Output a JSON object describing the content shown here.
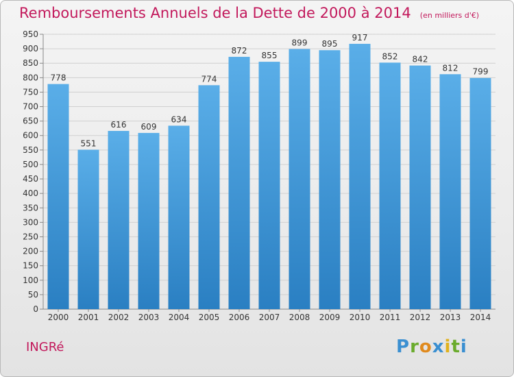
{
  "header": {
    "title": "Remboursements Annuels de la Dette de 2000 à 2014",
    "unit": "(en milliers d'€)"
  },
  "footer": {
    "city": "INGRé",
    "logo": "Proxiti",
    "logo_letters": [
      {
        "ch": "P",
        "color": "#3a8fd1"
      },
      {
        "ch": "r",
        "color": "#6aab2c"
      },
      {
        "ch": "o",
        "color": "#e08a1e"
      },
      {
        "ch": "x",
        "color": "#3a8fd1"
      },
      {
        "ch": "i",
        "color": "#e0b21e"
      },
      {
        "ch": "t",
        "color": "#6aab2c"
      },
      {
        "ch": "i",
        "color": "#3a8fd1"
      }
    ]
  },
  "colors": {
    "title": "#c2185b",
    "bar_top": "#5aaee8",
    "bar_bottom": "#2a7fc2",
    "grid": "#d0d0d0"
  },
  "chart_data": {
    "type": "bar",
    "title": "Remboursements Annuels de la Dette de 2000 à 2014",
    "categories": [
      "2000",
      "2001",
      "2002",
      "2003",
      "2004",
      "2005",
      "2006",
      "2007",
      "2008",
      "2009",
      "2010",
      "2011",
      "2012",
      "2013",
      "2014"
    ],
    "values": [
      778,
      551,
      616,
      609,
      634,
      774,
      872,
      855,
      899,
      895,
      917,
      852,
      842,
      812,
      799
    ],
    "ylim": [
      0,
      950
    ],
    "yticks": [
      0,
      50,
      100,
      150,
      200,
      250,
      300,
      350,
      400,
      450,
      500,
      550,
      600,
      650,
      700,
      750,
      800,
      850,
      900,
      950
    ],
    "grid": true,
    "xlabel": "",
    "ylabel": ""
  }
}
